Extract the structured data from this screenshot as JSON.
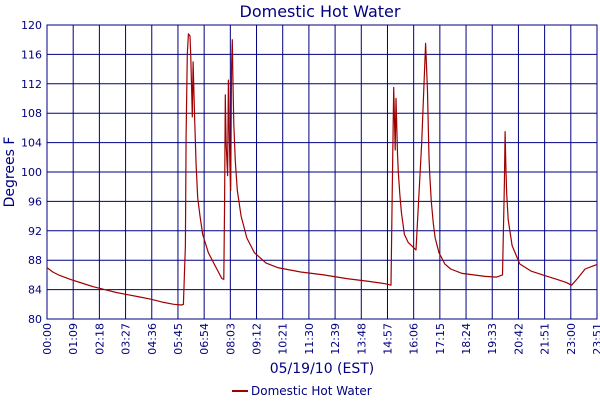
{
  "chart_data": {
    "type": "line",
    "title": "Domestic Hot Water",
    "xlabel": "05/19/10 (EST)",
    "ylabel": "Degrees F",
    "ylim": [
      80,
      120
    ],
    "y_ticks": [
      80,
      84,
      88,
      92,
      96,
      100,
      104,
      108,
      112,
      116,
      120
    ],
    "x_ticks": [
      "00:00",
      "01:09",
      "02:18",
      "03:27",
      "04:36",
      "05:45",
      "06:54",
      "08:03",
      "09:12",
      "10:21",
      "11:30",
      "12:39",
      "13:48",
      "14:57",
      "16:06",
      "17:15",
      "18:24",
      "19:33",
      "20:42",
      "21:51",
      "23:00",
      "23:51"
    ],
    "grid": true,
    "legend_position": "bottom-center",
    "series": [
      {
        "name": "Domestic Hot Water",
        "color": "#a00000",
        "x_minutes": [
          0,
          15,
          30,
          60,
          90,
          120,
          150,
          180,
          210,
          240,
          270,
          300,
          330,
          350,
          355,
          360,
          362,
          365,
          368,
          372,
          374,
          376,
          378,
          380,
          384,
          388,
          392,
          398,
          405,
          420,
          440,
          455,
          460,
          462,
          464,
          466,
          470,
          472,
          474,
          476,
          478,
          480,
          482,
          484,
          486,
          490,
          495,
          505,
          520,
          540,
          570,
          600,
          660,
          720,
          780,
          840,
          880,
          895,
          898,
          902,
          906,
          908,
          912,
          914,
          918,
          922,
          926,
          930,
          940,
          960,
          975,
          985,
          990,
          992,
          994,
          996,
          1000,
          1005,
          1010,
          1020,
          1035,
          1050,
          1080,
          1110,
          1140,
          1170,
          1185,
          1190,
          1192,
          1194,
          1196,
          1200,
          1210,
          1230,
          1260,
          1290,
          1320,
          1350,
          1365,
          1380,
          1400,
          1420,
          1431
        ],
        "values": [
          87.0,
          86.4,
          86.0,
          85.4,
          84.9,
          84.4,
          84.0,
          83.6,
          83.3,
          83.0,
          82.7,
          82.3,
          82.0,
          81.9,
          82.0,
          90.0,
          105.0,
          116.0,
          118.8,
          118.5,
          116.0,
          112.0,
          107.5,
          115.0,
          107.5,
          101.0,
          96.5,
          94.0,
          91.5,
          89.0,
          87.0,
          85.5,
          85.4,
          96.0,
          110.5,
          104.0,
          99.5,
          112.5,
          106.0,
          101.0,
          97.5,
          114.0,
          118.0,
          112.0,
          106.5,
          101.5,
          97.5,
          94.0,
          91.0,
          89.0,
          87.6,
          87.0,
          86.4,
          86.0,
          85.5,
          85.1,
          84.8,
          84.6,
          96.0,
          111.5,
          103.0,
          110.0,
          102.5,
          100.0,
          97.0,
          94.5,
          93.0,
          91.5,
          90.4,
          89.4,
          104.0,
          117.5,
          111.0,
          106.0,
          102.0,
          99.5,
          96.0,
          93.0,
          91.0,
          89.0,
          87.5,
          86.8,
          86.2,
          86.0,
          85.8,
          85.7,
          86.0,
          98.5,
          105.5,
          100.5,
          97.0,
          93.5,
          90.0,
          87.5,
          86.5,
          86.0,
          85.5,
          85.0,
          84.6,
          85.5,
          86.8,
          87.2,
          87.4
        ]
      }
    ]
  }
}
